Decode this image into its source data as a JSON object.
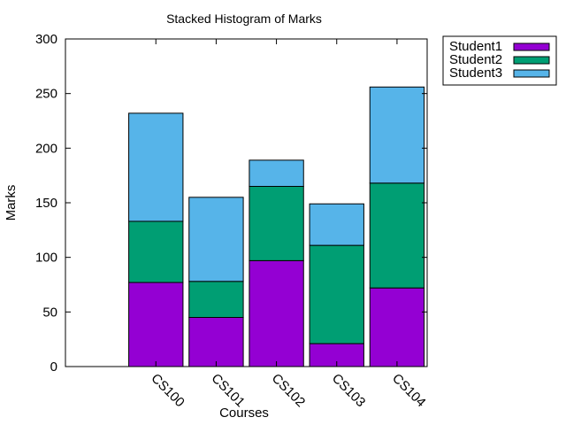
{
  "chart_data": {
    "type": "bar",
    "stacked": true,
    "title": "Stacked Histogram of Marks",
    "xlabel": "Courses",
    "ylabel": "Marks",
    "ylim": [
      0,
      300
    ],
    "yticks": [
      0,
      50,
      100,
      150,
      200,
      250,
      300
    ],
    "categories": [
      "CS100",
      "CS101",
      "CS102",
      "CS103",
      "CS104"
    ],
    "series": [
      {
        "name": "Student1",
        "color": "#9400d3",
        "values": [
          77,
          45,
          97,
          21,
          72
        ]
      },
      {
        "name": "Student2",
        "color": "#009e73",
        "values": [
          56,
          33,
          68,
          90,
          96
        ]
      },
      {
        "name": "Student3",
        "color": "#56b4e9",
        "values": [
          99,
          77,
          24,
          38,
          88
        ]
      }
    ],
    "legend_position": "outside-top-right",
    "grid": false
  }
}
